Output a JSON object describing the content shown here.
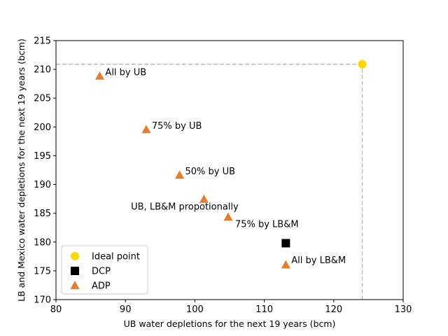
{
  "chart_data": {
    "type": "scatter",
    "xlabel": "UB water depletions for the next 19 years (bcm)",
    "ylabel": "LB and Mexico water depletions for the next 19 years (bcm)",
    "xlim": [
      80,
      130
    ],
    "ylim": [
      170,
      215
    ],
    "xticks": [
      "80",
      "90",
      "100",
      "110",
      "120",
      "130"
    ],
    "yticks": [
      "170",
      "175",
      "180",
      "185",
      "190",
      "195",
      "200",
      "205",
      "210",
      "215"
    ],
    "grid": false,
    "legend_position": "lower-left",
    "series": [
      {
        "name": "Ideal point",
        "marker": "circle",
        "color": "#ffd700",
        "points": [
          {
            "x": 124.1,
            "y": 210.9
          }
        ]
      },
      {
        "name": "DCP",
        "marker": "square",
        "color": "#000000",
        "points": [
          {
            "x": 113.1,
            "y": 179.8
          }
        ]
      },
      {
        "name": "ADP",
        "marker": "triangle",
        "color": "#e67e30",
        "points": [
          {
            "x": 86.3,
            "y": 208.8
          },
          {
            "x": 93.0,
            "y": 199.5
          },
          {
            "x": 97.8,
            "y": 191.6
          },
          {
            "x": 101.3,
            "y": 187.4
          },
          {
            "x": 104.8,
            "y": 184.3
          },
          {
            "x": 113.1,
            "y": 176.0
          }
        ]
      }
    ],
    "annotations": [
      {
        "text": "All by UB",
        "x": 87.1,
        "y": 209.0,
        "anchor": "start"
      },
      {
        "text": "75% by UB",
        "x": 93.8,
        "y": 199.7,
        "anchor": "start"
      },
      {
        "text": "50% by UB",
        "x": 98.6,
        "y": 191.8,
        "anchor": "start"
      },
      {
        "text": "UB, LB&M propotionally",
        "x": 90.8,
        "y": 185.6,
        "anchor": "start"
      },
      {
        "text": "75% by LB&M",
        "x": 105.8,
        "y": 182.6,
        "anchor": "start"
      },
      {
        "text": "All by LB&M",
        "x": 113.9,
        "y": 176.3,
        "anchor": "start"
      }
    ],
    "reference_lines": [
      {
        "type": "horizontal",
        "y": 210.9,
        "x_from": 80,
        "x_to": 124.1,
        "style": "dashed",
        "color": "#bbbbbb"
      },
      {
        "type": "vertical",
        "x": 124.1,
        "y_from": 170,
        "y_to": 210.9,
        "style": "dashed",
        "color": "#bbbbbb"
      }
    ]
  }
}
